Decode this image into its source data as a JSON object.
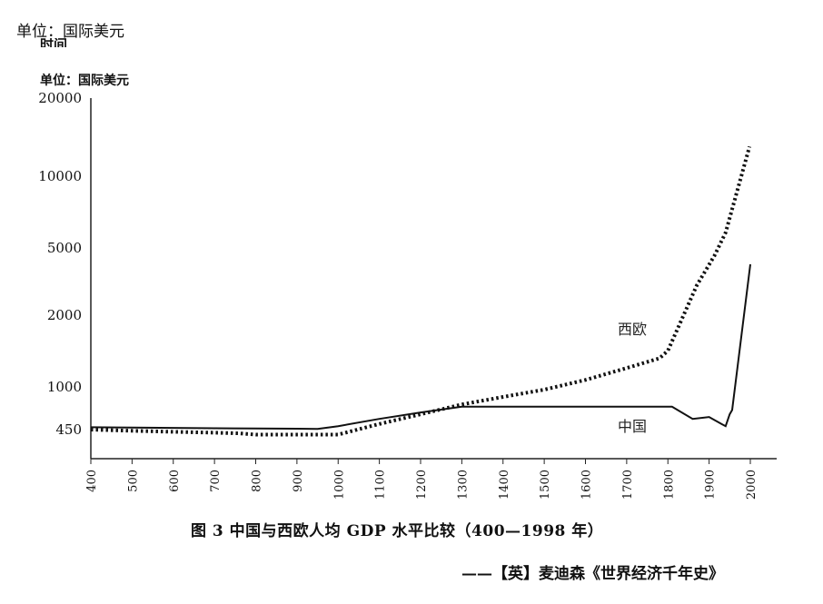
{
  "header": {
    "unit_label_top": "单位：国际美元",
    "clipped_text": "时间",
    "unit_label_inner": "单位：国际美元"
  },
  "caption": "图 3 中国与西欧人均 GDP 水平比较（400—1998 年）",
  "source": "——【英】麦迪森《世界经济千年史》",
  "chart_data": {
    "type": "line",
    "title": "",
    "xlabel": "",
    "ylabel": "",
    "yscale": "log",
    "xlim": [
      400,
      2000
    ],
    "ylim": [
      400,
      20000
    ],
    "xticks": [
      400,
      500,
      600,
      700,
      800,
      900,
      1000,
      1100,
      1200,
      1300,
      1400,
      1500,
      1600,
      1700,
      1800,
      1900,
      2000
    ],
    "yticks": [
      20000,
      10000,
      5000,
      2000,
      1000,
      450
    ],
    "yticklabels": [
      "20000",
      "10000",
      "5000",
      "2000",
      "1000",
      "450"
    ],
    "series": [
      {
        "name": "西欧",
        "style": "dotted",
        "points": [
          [
            400,
            450
          ],
          [
            500,
            440
          ],
          [
            600,
            432
          ],
          [
            700,
            425
          ],
          [
            760,
            420
          ],
          [
            800,
            410
          ],
          [
            900,
            410
          ],
          [
            960,
            410
          ],
          [
            1000,
            410
          ],
          [
            1100,
            500
          ],
          [
            1200,
            600
          ],
          [
            1300,
            720
          ],
          [
            1400,
            830
          ],
          [
            1500,
            950
          ],
          [
            1600,
            1070
          ],
          [
            1700,
            1200
          ],
          [
            1780,
            1320
          ],
          [
            1800,
            1420
          ],
          [
            1870,
            3000
          ],
          [
            1913,
            4500
          ],
          [
            1940,
            5800
          ],
          [
            1998,
            13000
          ]
        ]
      },
      {
        "name": "中国",
        "style": "solid",
        "points": [
          [
            400,
            470
          ],
          [
            500,
            468
          ],
          [
            600,
            465
          ],
          [
            700,
            462
          ],
          [
            800,
            460
          ],
          [
            900,
            458
          ],
          [
            950,
            456
          ],
          [
            1000,
            480
          ],
          [
            1100,
            550
          ],
          [
            1200,
            620
          ],
          [
            1300,
            690
          ],
          [
            1400,
            690
          ],
          [
            1500,
            690
          ],
          [
            1600,
            690
          ],
          [
            1700,
            690
          ],
          [
            1810,
            690
          ],
          [
            1860,
            550
          ],
          [
            1900,
            570
          ],
          [
            1930,
            500
          ],
          [
            1940,
            480
          ],
          [
            1950,
            600
          ],
          [
            1956,
            650
          ],
          [
            2000,
            4000
          ]
        ]
      }
    ],
    "colors": {
      "line": "#111111",
      "axis": "#222222"
    }
  }
}
